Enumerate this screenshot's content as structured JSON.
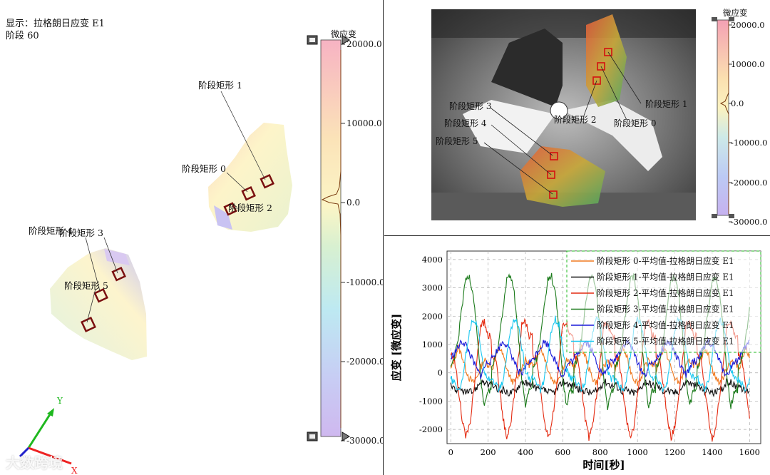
{
  "left": {
    "display_label": "显示：拉格朗日应变 E1",
    "stage_label": "阶段 60",
    "colorbar_title": "微应变",
    "colorbar_ticks": [
      "20000.0",
      "10000.0",
      "0.0",
      "-10000.0",
      "-20000.0",
      "-30000.0"
    ],
    "rect_labels": {
      "r1": "阶段矩形 1",
      "r0": "阶段矩形 0",
      "r2": "阶段矩形 2",
      "r4": "阶段矩形 4",
      "r3": "阶段矩形 3",
      "r5": "阶段矩形 5"
    },
    "axis_y": "Y",
    "axis_x": "X"
  },
  "photo": {
    "colorbar_title": "微应变",
    "colorbar_ticks": [
      "20000.0",
      "10000.0",
      "0.0",
      "-10000.0",
      "-20000.0",
      "-30000.0"
    ],
    "rect_labels": {
      "r3": "阶段矩形 3",
      "r4": "阶段矩形 4",
      "r5": "阶段矩形 5",
      "r2": "阶段矩形 2",
      "r0": "阶段矩形 0",
      "r1": "阶段矩形 1"
    }
  },
  "watermark": "大数跨境",
  "chart_data": {
    "type": "line",
    "xlabel": "时间[秒]",
    "ylabel": "应变 [微应变]",
    "xlim": [
      -20,
      1660
    ],
    "ylim": [
      -2500,
      4300
    ],
    "xticks": [
      0,
      200,
      400,
      600,
      800,
      1000,
      1200,
      1400,
      1600
    ],
    "yticks": [
      -2000,
      -1000,
      0,
      1000,
      2000,
      3000,
      4000
    ],
    "grid": true,
    "legend_position": "top-right",
    "period": 220,
    "x_range": [
      0,
      1600
    ],
    "series": [
      {
        "name": "阶段矩形 0-平均值-拉格朗日应变 E1",
        "color": "#f07a20",
        "samples": [
          [
            0,
            100
          ],
          [
            20,
            500
          ],
          [
            40,
            900
          ],
          [
            60,
            600
          ],
          [
            80,
            150
          ],
          [
            100,
            -200
          ],
          [
            120,
            -350
          ],
          [
            140,
            -150
          ],
          [
            160,
            200
          ],
          [
            180,
            450
          ],
          [
            200,
            300
          ]
        ]
      },
      {
        "name": "阶段矩形 1-平均值-拉格朗日应变 E1",
        "color": "#111111",
        "samples": [
          [
            0,
            -400
          ],
          [
            20,
            -550
          ],
          [
            40,
            -650
          ],
          [
            60,
            -600
          ],
          [
            80,
            -700
          ],
          [
            100,
            -700
          ],
          [
            120,
            -650
          ],
          [
            140,
            -500
          ],
          [
            160,
            -300
          ],
          [
            180,
            -350
          ],
          [
            200,
            -450
          ]
        ]
      },
      {
        "name": "阶段矩形 2-平均值-拉格朗日应变 E1",
        "color": "#e42a10",
        "samples": [
          [
            0,
            600
          ],
          [
            20,
            500
          ],
          [
            40,
            -500
          ],
          [
            60,
            -1600
          ],
          [
            80,
            -2300
          ],
          [
            100,
            -1900
          ],
          [
            120,
            -800
          ],
          [
            140,
            400
          ],
          [
            160,
            1700
          ],
          [
            180,
            1800
          ],
          [
            200,
            1300
          ]
        ]
      },
      {
        "name": "阶段矩形 3-平均值-拉格朗日应变 E1",
        "color": "#1a7a1a",
        "samples": [
          [
            0,
            200
          ],
          [
            20,
            500
          ],
          [
            40,
            1200
          ],
          [
            60,
            2300
          ],
          [
            80,
            3300
          ],
          [
            100,
            3400
          ],
          [
            120,
            2800
          ],
          [
            140,
            1500
          ],
          [
            160,
            -200
          ],
          [
            180,
            -1200
          ],
          [
            200,
            -600
          ]
        ]
      },
      {
        "name": "阶段矩形 4-平均值-拉格朗日应变 E1",
        "color": "#1818d8",
        "samples": [
          [
            0,
            500
          ],
          [
            20,
            700
          ],
          [
            40,
            900
          ],
          [
            60,
            1100
          ],
          [
            80,
            1000
          ],
          [
            100,
            700
          ],
          [
            120,
            400
          ],
          [
            140,
            100
          ],
          [
            160,
            -100
          ],
          [
            180,
            200
          ],
          [
            200,
            400
          ]
        ]
      },
      {
        "name": "阶段矩形 5-平均值-拉格朗日应变 E1",
        "color": "#19c8f0",
        "samples": [
          [
            0,
            -200
          ],
          [
            20,
            -400
          ],
          [
            40,
            -600
          ],
          [
            60,
            -300
          ],
          [
            80,
            600
          ],
          [
            100,
            1500
          ],
          [
            120,
            1900
          ],
          [
            140,
            1700
          ],
          [
            160,
            900
          ],
          [
            180,
            100
          ],
          [
            200,
            -200
          ]
        ]
      }
    ]
  }
}
